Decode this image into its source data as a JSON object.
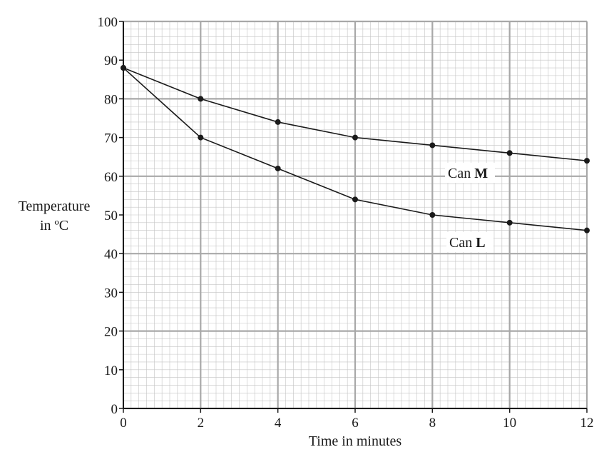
{
  "chart_data": {
    "type": "line",
    "title": "",
    "xlabel": "Time in minutes",
    "ylabel_line1": "Temperature",
    "ylabel_line2": "in ºC",
    "xlim": [
      0,
      12
    ],
    "ylim": [
      0,
      100
    ],
    "x_ticks": [
      0,
      2,
      4,
      6,
      8,
      10,
      12
    ],
    "y_ticks": [
      0,
      10,
      20,
      30,
      40,
      50,
      60,
      70,
      80,
      90,
      100
    ],
    "grid": true,
    "x": [
      0,
      2,
      4,
      6,
      8,
      10,
      12
    ],
    "series": [
      {
        "id": "M",
        "label_prefix": "Can ",
        "label_bold": "M",
        "values": [
          88,
          80,
          74,
          70,
          68,
          66,
          64
        ]
      },
      {
        "id": "L",
        "label_prefix": "Can ",
        "label_bold": "L",
        "values": [
          88,
          70,
          62,
          54,
          50,
          48,
          46
        ]
      }
    ]
  }
}
